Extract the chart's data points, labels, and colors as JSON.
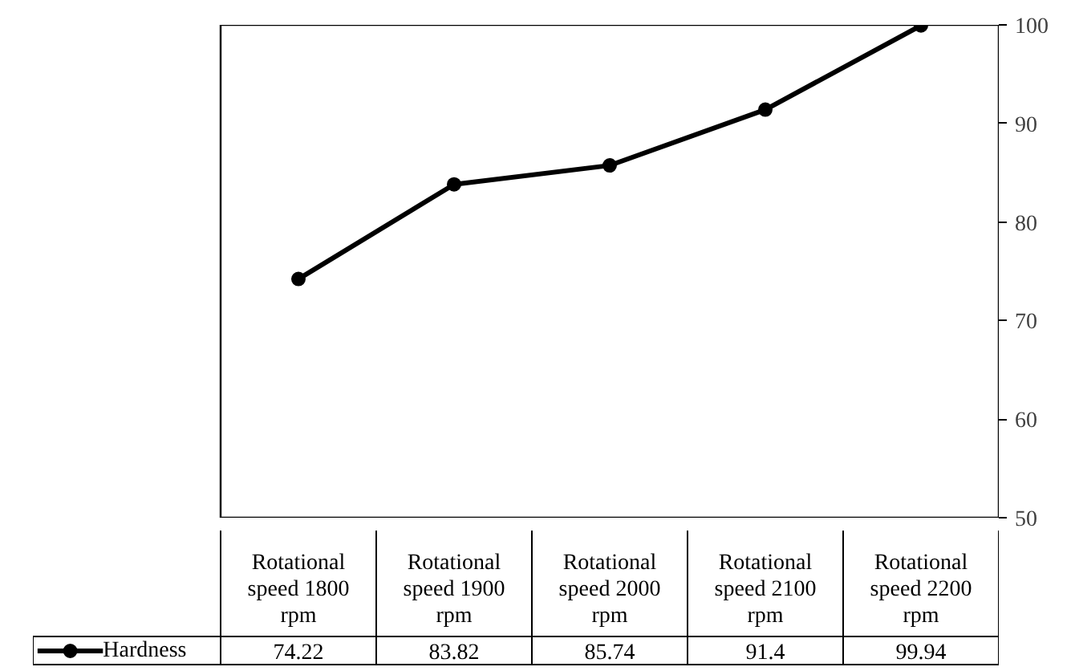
{
  "chart_data": {
    "type": "line",
    "categories": [
      "Rotational speed 1800 rpm",
      "Rotational speed 1900 rpm",
      "Rotational speed 2000 rpm",
      "Rotational speed 2100 rpm",
      "Rotational speed 2200 rpm"
    ],
    "series": [
      {
        "name": "Hardness",
        "color": "#000000",
        "values": [
          74.22,
          83.82,
          85.74,
          91.4,
          99.94
        ]
      }
    ],
    "ylim": [
      50,
      100
    ],
    "yticks": [
      50,
      60,
      70,
      80,
      90,
      100
    ],
    "grid": false,
    "legend": "bottom",
    "marker": "circle",
    "line_style": "solid",
    "data_labels": true
  }
}
